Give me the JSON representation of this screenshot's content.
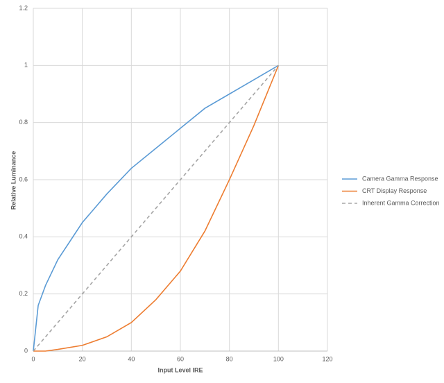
{
  "chart_data": {
    "type": "line",
    "xlabel": "Input Level IRE",
    "ylabel": "Relative Luminance",
    "x": [
      0,
      2,
      5,
      10,
      20,
      30,
      40,
      50,
      60,
      70,
      80,
      90,
      100
    ],
    "series": [
      {
        "name": "Camera Gamma Response",
        "color": "#5b9bd5",
        "line_style": "solid",
        "values": [
          0,
          0.16,
          0.23,
          0.32,
          0.45,
          0.55,
          0.64,
          0.71,
          0.78,
          0.85,
          0.9,
          0.95,
          1
        ]
      },
      {
        "name": "CRT Display Response",
        "color": "#ed7d31",
        "line_style": "solid",
        "values": [
          0,
          0,
          0,
          0.006,
          0.02,
          0.05,
          0.1,
          0.18,
          0.28,
          0.42,
          0.6,
          0.79,
          1
        ]
      },
      {
        "name": "Inherent Gamma Correction",
        "color": "#a5a5a5",
        "line_style": "dashed",
        "values": [
          0,
          0.02,
          0.05,
          0.1,
          0.2,
          0.3,
          0.4,
          0.5,
          0.6,
          0.7,
          0.8,
          0.9,
          1
        ]
      }
    ],
    "xlim": [
      0,
      120
    ],
    "xticks": [
      0,
      20,
      40,
      60,
      80,
      100,
      120
    ],
    "ylim": [
      0,
      1.2
    ],
    "yticks": [
      0,
      0.2,
      0.4,
      0.6,
      0.8,
      1,
      1.2
    ],
    "grid": true,
    "legend": "right"
  }
}
